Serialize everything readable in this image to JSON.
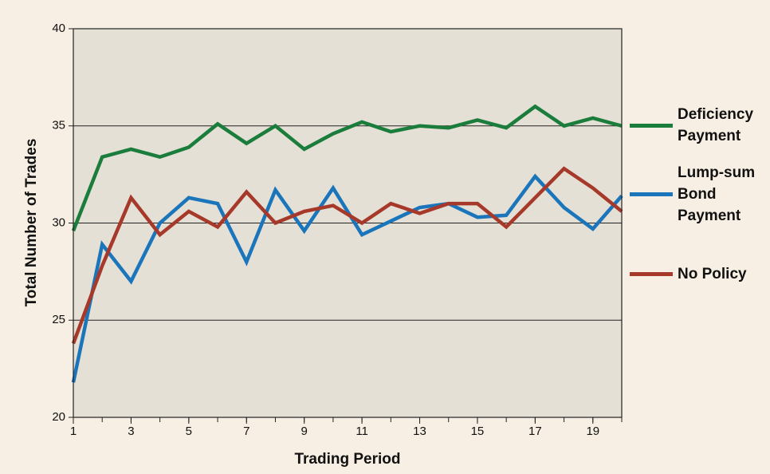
{
  "chart_data": {
    "type": "line",
    "xlabel": "Trading Period",
    "ylabel": "Total Number of Trades",
    "x": [
      1,
      2,
      3,
      4,
      5,
      6,
      7,
      8,
      9,
      10,
      11,
      12,
      13,
      14,
      15,
      16,
      17,
      18,
      19,
      20
    ],
    "series": [
      {
        "name": "Deficiency Payment",
        "color": "#1a7d3c",
        "values": [
          29.6,
          33.4,
          33.8,
          33.4,
          33.9,
          35.1,
          34.1,
          35.0,
          33.8,
          34.6,
          35.2,
          34.7,
          35.0,
          34.9,
          35.3,
          34.9,
          36.0,
          35.0,
          35.4,
          35.0
        ]
      },
      {
        "name": "Lump-sum Bond Payment",
        "color": "#1b75bb",
        "values": [
          21.8,
          28.9,
          27.0,
          30.0,
          31.3,
          31.0,
          28.0,
          31.7,
          29.6,
          31.8,
          29.4,
          30.1,
          30.8,
          31.0,
          30.3,
          30.4,
          32.4,
          30.8,
          29.7,
          31.4
        ]
      },
      {
        "name": "No Policy",
        "color": "#a6392a",
        "values": [
          23.8,
          27.8,
          31.3,
          29.4,
          30.6,
          29.8,
          31.6,
          30.0,
          30.6,
          30.9,
          30.0,
          31.0,
          30.5,
          31.0,
          31.0,
          29.8,
          31.3,
          32.8,
          31.8,
          30.6
        ]
      }
    ],
    "xlim": [
      1,
      20
    ],
    "xticks": [
      1,
      3,
      5,
      7,
      9,
      11,
      13,
      15,
      17,
      19
    ],
    "ylim": [
      20,
      40
    ],
    "yticks": [
      20,
      25,
      30,
      35,
      40
    ],
    "grid": true,
    "legend": "right"
  }
}
